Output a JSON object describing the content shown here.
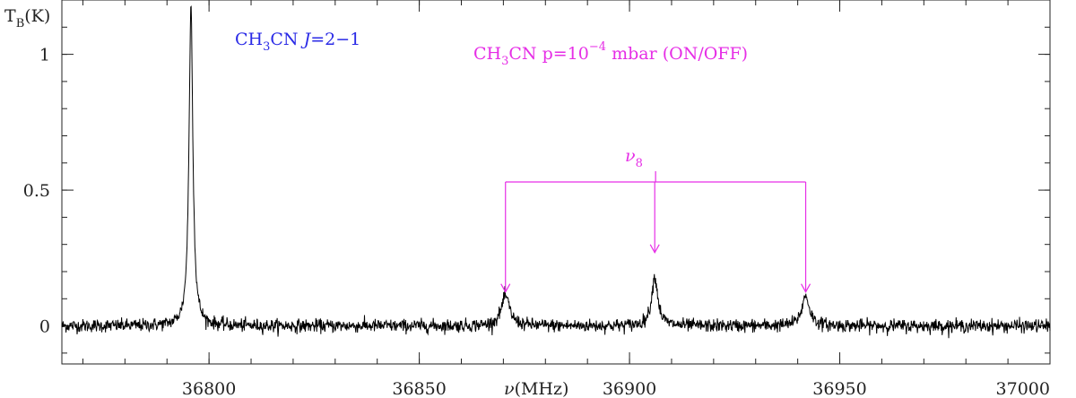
{
  "chart_data": {
    "type": "line",
    "xlabel_symbol": "ν",
    "xlabel_unit": "(MHz)",
    "ylabel_main": "T",
    "ylabel_sub": "B",
    "ylabel_unit": "(K)",
    "xlim": [
      36765,
      37000
    ],
    "ylim": [
      -0.14,
      1.2
    ],
    "xticks": [
      {
        "value": 36800,
        "label": "36800"
      },
      {
        "value": 36850,
        "label": "36850"
      },
      {
        "value": 36900,
        "label": "36900"
      },
      {
        "value": 36950,
        "label": "36950"
      },
      {
        "value": 37000,
        "label": "37000"
      }
    ],
    "yticks": [
      {
        "value": 0,
        "label": "0"
      },
      {
        "value": 0.5,
        "label": "0.5"
      },
      {
        "value": 1,
        "label": "1"
      }
    ],
    "x_minor_step": 10,
    "y_minor_step": 0.1,
    "noise_rms": 0.012,
    "lines": [
      {
        "name": "CH3CN J=2-1",
        "x": 36795.7,
        "peak": 1.18,
        "width": 0.55
      },
      {
        "name": "nu8 a",
        "x": 36870.5,
        "peak": 0.11,
        "width": 1.2
      },
      {
        "name": "nu8 b",
        "x": 36906.0,
        "peak": 0.18,
        "width": 0.9
      },
      {
        "name": "nu8 c",
        "x": 36941.9,
        "peak": 0.11,
        "width": 1.1
      }
    ],
    "annotations": {
      "main_line": {
        "mol": "CH",
        "mol_sub": "3",
        "mol_tail": "CN ",
        "q": "J",
        "trans": "=2−1",
        "color": "#2a2ae6"
      },
      "conditions": {
        "mol": "CH",
        "mol_sub": "3",
        "mol_tail": "CN p=10",
        "exp": "−4",
        "tail": " mbar (ON/OFF)",
        "color": "#e62ee6"
      },
      "nu8_bracket": {
        "symbol": "ν",
        "sub": "8",
        "color": "#e62ee6",
        "bracket_y": 0.53,
        "arrows": [
          {
            "x": 36870.5,
            "tip_y": 0.125
          },
          {
            "x": 36906.0,
            "tip_y": 0.27
          },
          {
            "x": 36941.9,
            "tip_y": 0.125
          }
        ]
      }
    }
  }
}
